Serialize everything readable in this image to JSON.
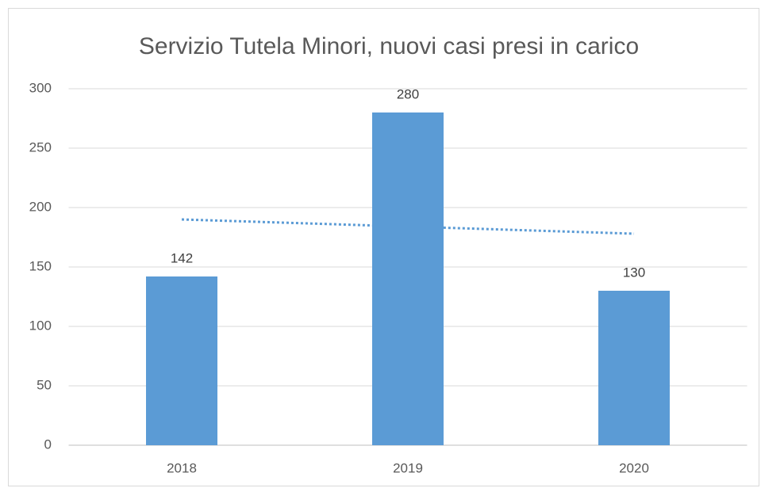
{
  "chart_data": {
    "type": "bar",
    "title": "Servizio Tutela Minori, nuovi casi presi in carico",
    "categories": [
      "2018",
      "2019",
      "2020"
    ],
    "values": [
      142,
      280,
      130
    ],
    "color": "#5b9bd5",
    "ylim": [
      0,
      300
    ],
    "yticks": [
      0,
      50,
      100,
      150,
      200,
      250,
      300
    ],
    "grid": true,
    "trendline": "linear",
    "data_labels": true
  }
}
